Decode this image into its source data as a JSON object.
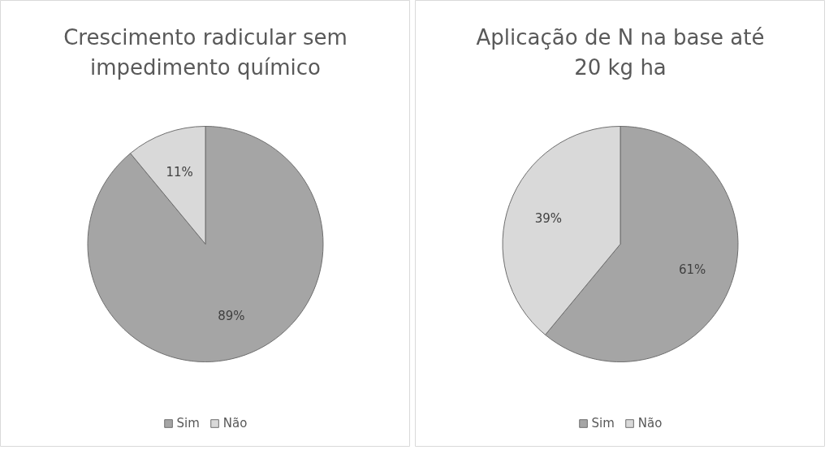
{
  "chart_data": [
    {
      "type": "pie",
      "title": "Crescimento radicular sem impedimento químico",
      "categories": [
        "Sim",
        "Não"
      ],
      "values": [
        89,
        11
      ],
      "value_labels": [
        "89%",
        "11%"
      ],
      "colors": [
        "#a5a5a5",
        "#d9d9d9"
      ],
      "legend": "bottom"
    },
    {
      "type": "pie",
      "title": "Aplicação de N na base até 20 kg ha",
      "categories": [
        "Sim",
        "Não"
      ],
      "values": [
        61,
        39
      ],
      "value_labels": [
        "61%",
        "39%"
      ],
      "colors": [
        "#a5a5a5",
        "#d9d9d9"
      ],
      "legend": "bottom"
    }
  ]
}
